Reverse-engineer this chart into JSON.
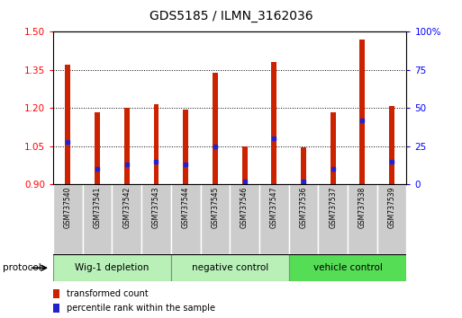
{
  "title": "GDS5185 / ILMN_3162036",
  "samples": [
    "GSM737540",
    "GSM737541",
    "GSM737542",
    "GSM737543",
    "GSM737544",
    "GSM737545",
    "GSM737546",
    "GSM737547",
    "GSM737536",
    "GSM737537",
    "GSM737538",
    "GSM737539"
  ],
  "red_values": [
    1.37,
    1.185,
    1.2,
    1.215,
    1.195,
    1.34,
    1.05,
    1.38,
    1.045,
    1.185,
    1.47,
    1.21
  ],
  "blue_values_pct": [
    28,
    10,
    13,
    15,
    13,
    25,
    2,
    30,
    2,
    10,
    42,
    15
  ],
  "ymin": 0.9,
  "ymax": 1.5,
  "yticks": [
    0.9,
    1.05,
    1.2,
    1.35,
    1.5
  ],
  "right_yticks_vals": [
    0,
    25,
    50,
    75,
    100
  ],
  "right_ytick_labels": [
    "0",
    "25",
    "50",
    "75",
    "100%"
  ],
  "groups": [
    {
      "label": "Wig-1 depletion",
      "start": 0,
      "end": 4,
      "color": "#b8f0b8"
    },
    {
      "label": "negative control",
      "start": 4,
      "end": 8,
      "color": "#b8f0b8"
    },
    {
      "label": "vehicle control",
      "start": 8,
      "end": 12,
      "color": "#55dd55"
    }
  ],
  "bar_color": "#cc2200",
  "dot_color": "#2222cc",
  "bar_width": 0.18,
  "sample_box_color": "#cccccc",
  "protocol_label": "protocol",
  "legend_red_label": "transformed count",
  "legend_blue_label": "percentile rank within the sample",
  "title_fontsize": 10,
  "tick_fontsize": 7.5,
  "sample_fontsize": 5.5,
  "group_fontsize": 7.5,
  "legend_fontsize": 7
}
